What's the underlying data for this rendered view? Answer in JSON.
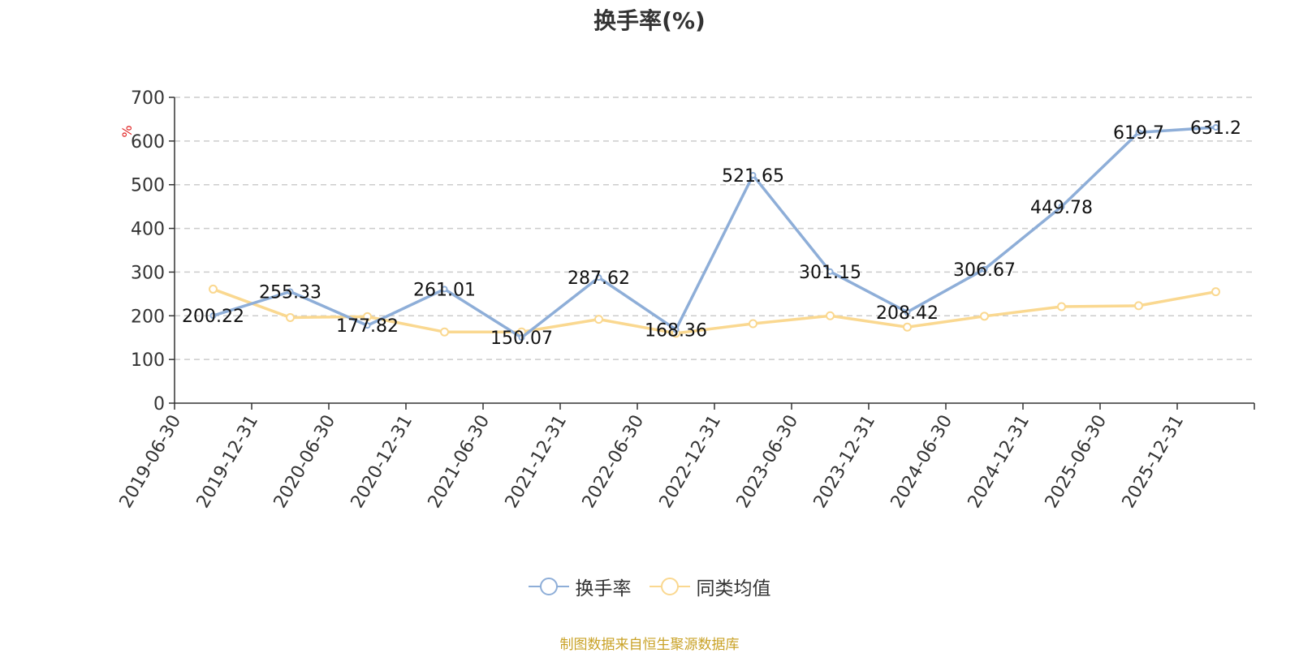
{
  "chart_data": {
    "type": "line",
    "title": "换手率(%)",
    "ylabel": "%",
    "ylim": [
      0,
      700
    ],
    "yticks": [
      0,
      100,
      200,
      300,
      400,
      500,
      600,
      700
    ],
    "grid": true,
    "legend_position": "bottom",
    "categories": [
      "2019-06-30",
      "2019-12-31",
      "2020-06-30",
      "2020-12-31",
      "2021-06-30",
      "2021-12-31",
      "2022-06-30",
      "2022-12-31",
      "2023-06-30",
      "2023-12-31",
      "2024-06-30",
      "2024-12-31",
      "2025-06-30",
      "2025-12-31"
    ],
    "series": [
      {
        "name": "换手率",
        "color": "#8eaed8",
        "values": [
          200.22,
          255.33,
          177.82,
          261.01,
          150.07,
          287.62,
          168.36,
          521.65,
          301.15,
          208.42,
          306.67,
          449.78,
          619.7,
          631.2
        ],
        "labels": [
          "200.22",
          "255.33",
          "177.82",
          "261.01",
          "150.07",
          "287.62",
          "168.36",
          "521.65",
          "301.15",
          "208.42",
          "306.67",
          "449.78",
          "619.7",
          "631.2"
        ]
      },
      {
        "name": "同类均值",
        "color": "#fad890",
        "values": [
          261,
          196,
          198,
          163,
          163,
          192,
          160,
          182,
          200,
          174,
          199,
          221,
          223,
          255
        ]
      }
    ]
  },
  "footer": {
    "source": "制图数据来自恒生聚源数据库"
  }
}
